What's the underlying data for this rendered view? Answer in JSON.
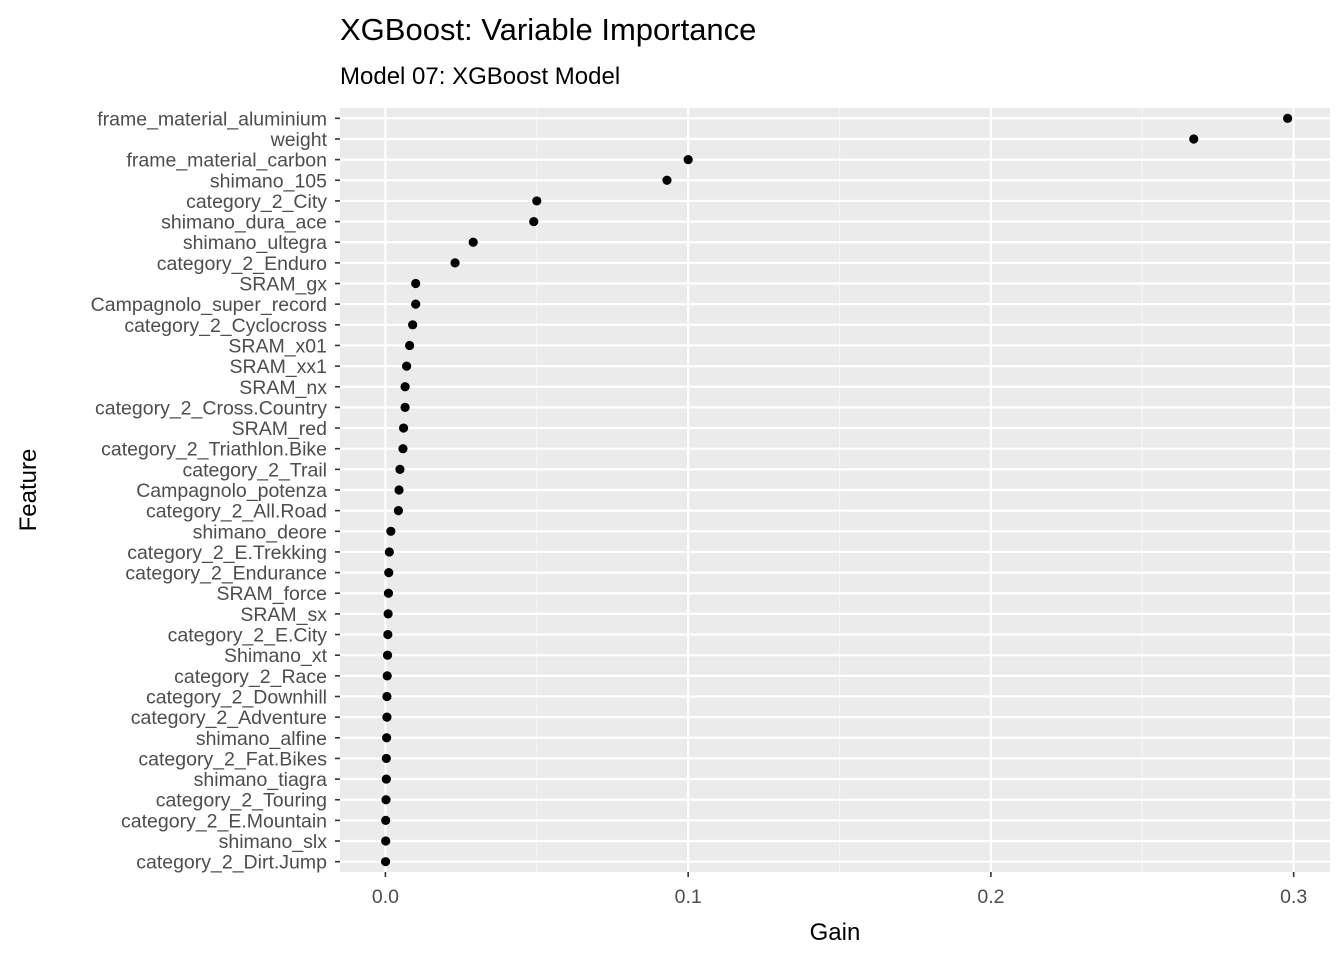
{
  "chart_data": {
    "type": "scatter",
    "title": "XGBoost: Variable Importance",
    "subtitle": "Model 07: XGBoost Model",
    "xlabel": "Gain",
    "ylabel": "Feature",
    "xlim": [
      -0.015,
      0.312
    ],
    "xticks": [
      0.0,
      0.1,
      0.2,
      0.3
    ],
    "xtick_labels": [
      "0.0",
      "0.1",
      "0.2",
      "0.3"
    ],
    "grid": true,
    "categories": [
      "frame_material_aluminium",
      "weight",
      "frame_material_carbon",
      "shimano_105",
      "category_2_City",
      "shimano_dura_ace",
      "shimano_ultegra",
      "category_2_Enduro",
      "SRAM_gx",
      "Campagnolo_super_record",
      "category_2_Cyclocross",
      "SRAM_x01",
      "SRAM_xx1",
      "SRAM_nx",
      "category_2_Cross.Country",
      "SRAM_red",
      "category_2_Triathlon.Bike",
      "category_2_Trail",
      "Campagnolo_potenza",
      "category_2_All.Road",
      "shimano_deore",
      "category_2_E.Trekking",
      "category_2_Endurance",
      "SRAM_force",
      "SRAM_sx",
      "category_2_E.City",
      "Shimano_xt",
      "category_2_Race",
      "category_2_Downhill",
      "category_2_Adventure",
      "shimano_alfine",
      "category_2_Fat.Bikes",
      "shimano_tiagra",
      "category_2_Touring",
      "category_2_E.Mountain",
      "shimano_slx",
      "category_2_Dirt.Jump"
    ],
    "values": [
      0.298,
      0.267,
      0.1,
      0.093,
      0.05,
      0.049,
      0.029,
      0.023,
      0.01,
      0.01,
      0.009,
      0.008,
      0.007,
      0.0065,
      0.0065,
      0.006,
      0.0058,
      0.0048,
      0.0045,
      0.0043,
      0.0018,
      0.0013,
      0.0011,
      0.001,
      0.0009,
      0.0008,
      0.0007,
      0.0006,
      0.0005,
      0.0005,
      0.0004,
      0.0003,
      0.0003,
      0.0002,
      0.0001,
      0.0001,
      5e-05
    ],
    "colors": {
      "panel": "#ebebeb",
      "grid_major": "#ffffff",
      "grid_minor": "#f5f5f5",
      "point": "#000000",
      "tick_text": "#4d4d4d",
      "tick_mark": "#333333"
    }
  }
}
